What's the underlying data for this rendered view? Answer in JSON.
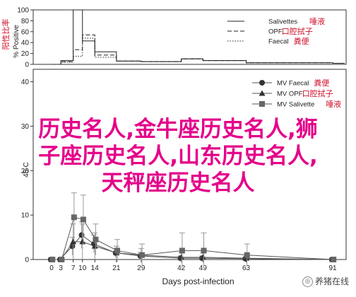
{
  "chart_data": [
    {
      "type": "line",
      "style": "step",
      "ylabel": "% Positive",
      "ylabel_annotation": "阳性比率",
      "ylim": [
        0,
        100
      ],
      "yticks": [
        0,
        20,
        40,
        60,
        80,
        100
      ],
      "grid": false,
      "legend_position": "top-right",
      "x": [
        0,
        3,
        7,
        10,
        14,
        21,
        29,
        42,
        49,
        63,
        91
      ],
      "series": [
        {
          "name": "Salivettes",
          "name_annotation": "唾液",
          "line_style": "solid",
          "values": [
            0,
            7,
            100,
            43,
            23,
            6,
            5,
            10,
            7,
            3,
            2
          ]
        },
        {
          "name": "OPF",
          "name_annotation": "口腔拭子",
          "line_style": "dashed",
          "values": [
            0,
            5,
            27,
            54,
            17,
            6,
            5,
            10,
            7,
            3,
            2
          ]
        },
        {
          "name": "Faecal",
          "name_annotation": "粪便",
          "line_style": "dotted",
          "values": [
            0,
            4,
            15,
            48,
            13,
            6,
            5,
            10,
            7,
            3,
            2
          ]
        }
      ]
    },
    {
      "type": "line",
      "style": "errorbar",
      "xlabel": "Days post-infection",
      "ylabel": "45-C",
      "ylim": [
        0,
        40
      ],
      "yticks": [
        0,
        10,
        20,
        30,
        40
      ],
      "xticks": [
        0,
        3,
        7,
        10,
        14,
        21,
        29,
        42,
        49,
        63,
        91
      ],
      "grid": false,
      "legend_position": "top-right",
      "x": [
        0,
        3,
        7,
        10,
        14,
        21,
        29,
        42,
        49,
        63,
        91
      ],
      "series": [
        {
          "name": "MV Faecal",
          "name_annotation": "粪便",
          "marker": "circle",
          "values": [
            0,
            0,
            3,
            5.5,
            3.5,
            1.5,
            0.8,
            0.3,
            0.3,
            0.2,
            0
          ],
          "error": [
            0,
            0,
            2,
            3,
            2,
            1,
            0.8,
            0.5,
            0.5,
            0.3,
            0
          ]
        },
        {
          "name": "MV OPF",
          "name_annotation": "口腔拭子",
          "marker": "triangle",
          "values": [
            0,
            0,
            4,
            4,
            3,
            1.5,
            1,
            0.5,
            0.5,
            0.3,
            0
          ],
          "error": [
            0,
            0,
            4,
            4,
            3,
            1.5,
            1.5,
            1,
            1,
            0.5,
            0
          ]
        },
        {
          "name": "MV Salivette",
          "name_annotation": "唾液",
          "marker": "square",
          "values": [
            0,
            0,
            9.5,
            9,
            4.5,
            2,
            1,
            2,
            2,
            1,
            0
          ],
          "error": [
            0,
            0,
            5.5,
            5.5,
            3.5,
            2.5,
            2.5,
            4,
            4,
            2.5,
            0
          ]
        }
      ]
    }
  ],
  "overlay": {
    "line1": "历史名人,金牛座历史名人,狮",
    "line2": "子座历史名人,山东历史名人,",
    "line3": "天秤座历史名人"
  },
  "watermark": {
    "icon": "wechat-icon",
    "text": "养猪在线"
  }
}
